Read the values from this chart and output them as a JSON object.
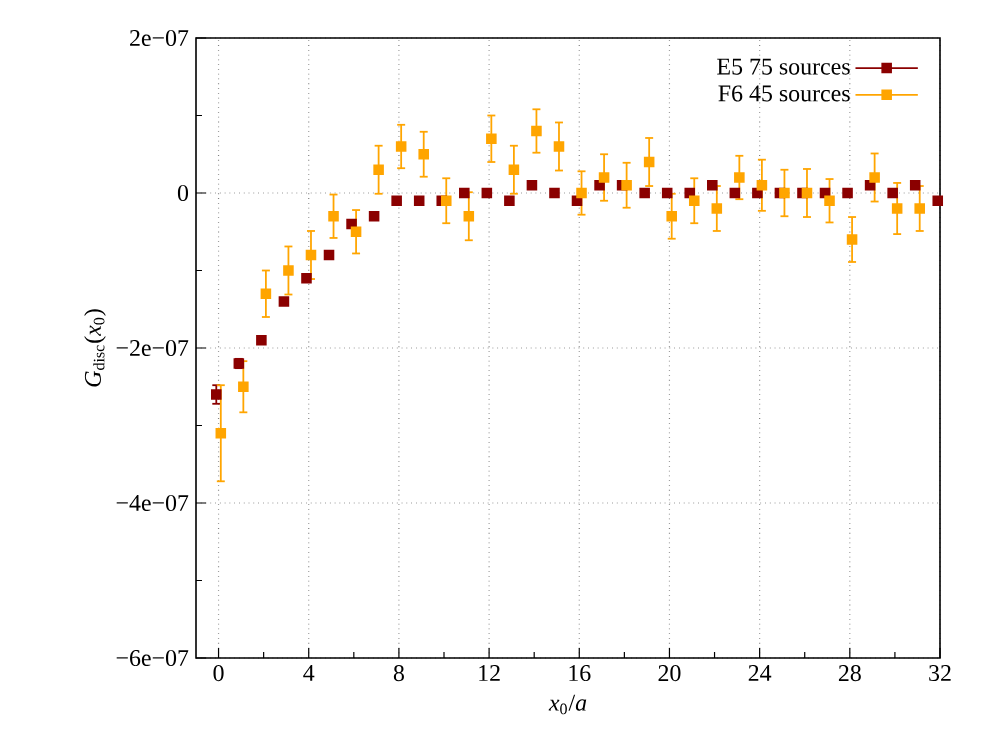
{
  "chart_data": {
    "type": "scatter",
    "xlabel": "*x*$_{0}$/*a*",
    "ylabel": "*G*$_{disc}$(*x*$_{0}$)",
    "xlim": [
      -1,
      32
    ],
    "ylim": [
      -6e-07,
      2e-07
    ],
    "xticks": [
      0,
      {
        "value": 2,
        "label": null
      },
      4,
      {
        "value": 6,
        "label": null
      },
      8,
      {
        "value": 10,
        "label": null
      },
      12,
      {
        "value": 14,
        "label": null
      },
      16,
      {
        "value": 18,
        "label": null
      },
      20,
      {
        "value": 22,
        "label": null
      },
      24,
      {
        "value": 26,
        "label": null
      },
      28,
      {
        "value": 30,
        "label": null
      },
      32
    ],
    "yticks": [
      {
        "value": -6e-07,
        "label": "−6e−07"
      },
      {
        "value": -5e-07,
        "label": null
      },
      {
        "value": -4e-07,
        "label": "−4e−07"
      },
      {
        "value": -3e-07,
        "label": null
      },
      {
        "value": -2e-07,
        "label": "−2e−07"
      },
      {
        "value": -1e-07,
        "label": null
      },
      0,
      {
        "value": 1e-07,
        "label": null
      },
      {
        "value": 2e-07,
        "label": "2e−07"
      }
    ],
    "grid": true,
    "legend": "top right",
    "marker": "square",
    "series": [
      {
        "name": "E5 75 sources",
        "color": "#8b0000",
        "x": [
          -0.1,
          0.9,
          1.9,
          2.9,
          3.9,
          4.9,
          5.9,
          6.9,
          7.9,
          8.9,
          9.9,
          10.9,
          11.9,
          12.9,
          13.9,
          14.9,
          15.9,
          16.9,
          17.9,
          18.9,
          19.9,
          20.9,
          21.9,
          22.9,
          23.9,
          24.9,
          25.9,
          26.9,
          27.9,
          28.9,
          29.9,
          30.9,
          31.9
        ],
        "values": [
          -2.6e-07,
          -2.2e-07,
          -1.9e-07,
          -1.4e-07,
          -1.1e-07,
          -8e-08,
          -4e-08,
          -3e-08,
          -1e-08,
          -1e-08,
          -1e-08,
          0,
          0,
          -1e-08,
          1e-08,
          0,
          -1e-08,
          1e-08,
          1e-08,
          0,
          0,
          0,
          1e-08,
          0,
          0,
          0,
          0,
          0,
          0,
          1e-08,
          0,
          1e-08,
          -1e-08
        ],
        "errors": [
          1.2e-08,
          6e-09,
          4e-09,
          4e-09,
          4e-09,
          4e-09,
          4e-09,
          3e-09,
          3e-09,
          3e-09,
          3e-09,
          3e-09,
          3e-09,
          3e-09,
          3e-09,
          3e-09,
          3e-09,
          3e-09,
          3e-09,
          3e-09,
          3e-09,
          3e-09,
          3e-09,
          3e-09,
          3e-09,
          3e-09,
          3e-09,
          3e-09,
          3e-09,
          3e-09,
          3e-09,
          3e-09,
          3e-09
        ]
      },
      {
        "name": "F6 45 sources",
        "color": "#ffa500",
        "x": [
          0.1,
          1.1,
          2.1,
          3.1,
          4.1,
          5.1,
          6.1,
          7.1,
          8.1,
          9.1,
          10.1,
          11.1,
          12.1,
          13.1,
          14.1,
          15.1,
          16.1,
          17.1,
          18.1,
          19.1,
          20.1,
          21.1,
          22.1,
          23.1,
          24.1,
          25.1,
          26.1,
          27.1,
          28.1,
          29.1,
          30.1,
          31.1
        ],
        "values": [
          -3.1e-07,
          -2.5e-07,
          -1.3e-07,
          -1e-07,
          -8e-08,
          -3e-08,
          -5e-08,
          3e-08,
          6e-08,
          5e-08,
          -1e-08,
          -3e-08,
          7e-08,
          3e-08,
          8e-08,
          6e-08,
          0,
          2e-08,
          1e-08,
          4e-08,
          -3e-08,
          -1e-08,
          -2e-08,
          2e-08,
          1e-08,
          0,
          0,
          -1e-08,
          -6e-08,
          2e-08,
          -2e-08,
          -2e-08
        ],
        "errors": [
          6.2e-08,
          3.3e-08,
          3e-08,
          3.1e-08,
          3.1e-08,
          2.8e-08,
          2.8e-08,
          3.1e-08,
          2.8e-08,
          2.9e-08,
          2.9e-08,
          3.1e-08,
          3e-08,
          3.1e-08,
          2.8e-08,
          3.1e-08,
          2.8e-08,
          3e-08,
          2.9e-08,
          3.1e-08,
          2.9e-08,
          2.9e-08,
          2.9e-08,
          2.8e-08,
          3.3e-08,
          3e-08,
          3.1e-08,
          2.8e-08,
          2.9e-08,
          3.1e-08,
          3.3e-08,
          2.9e-08
        ]
      }
    ]
  }
}
